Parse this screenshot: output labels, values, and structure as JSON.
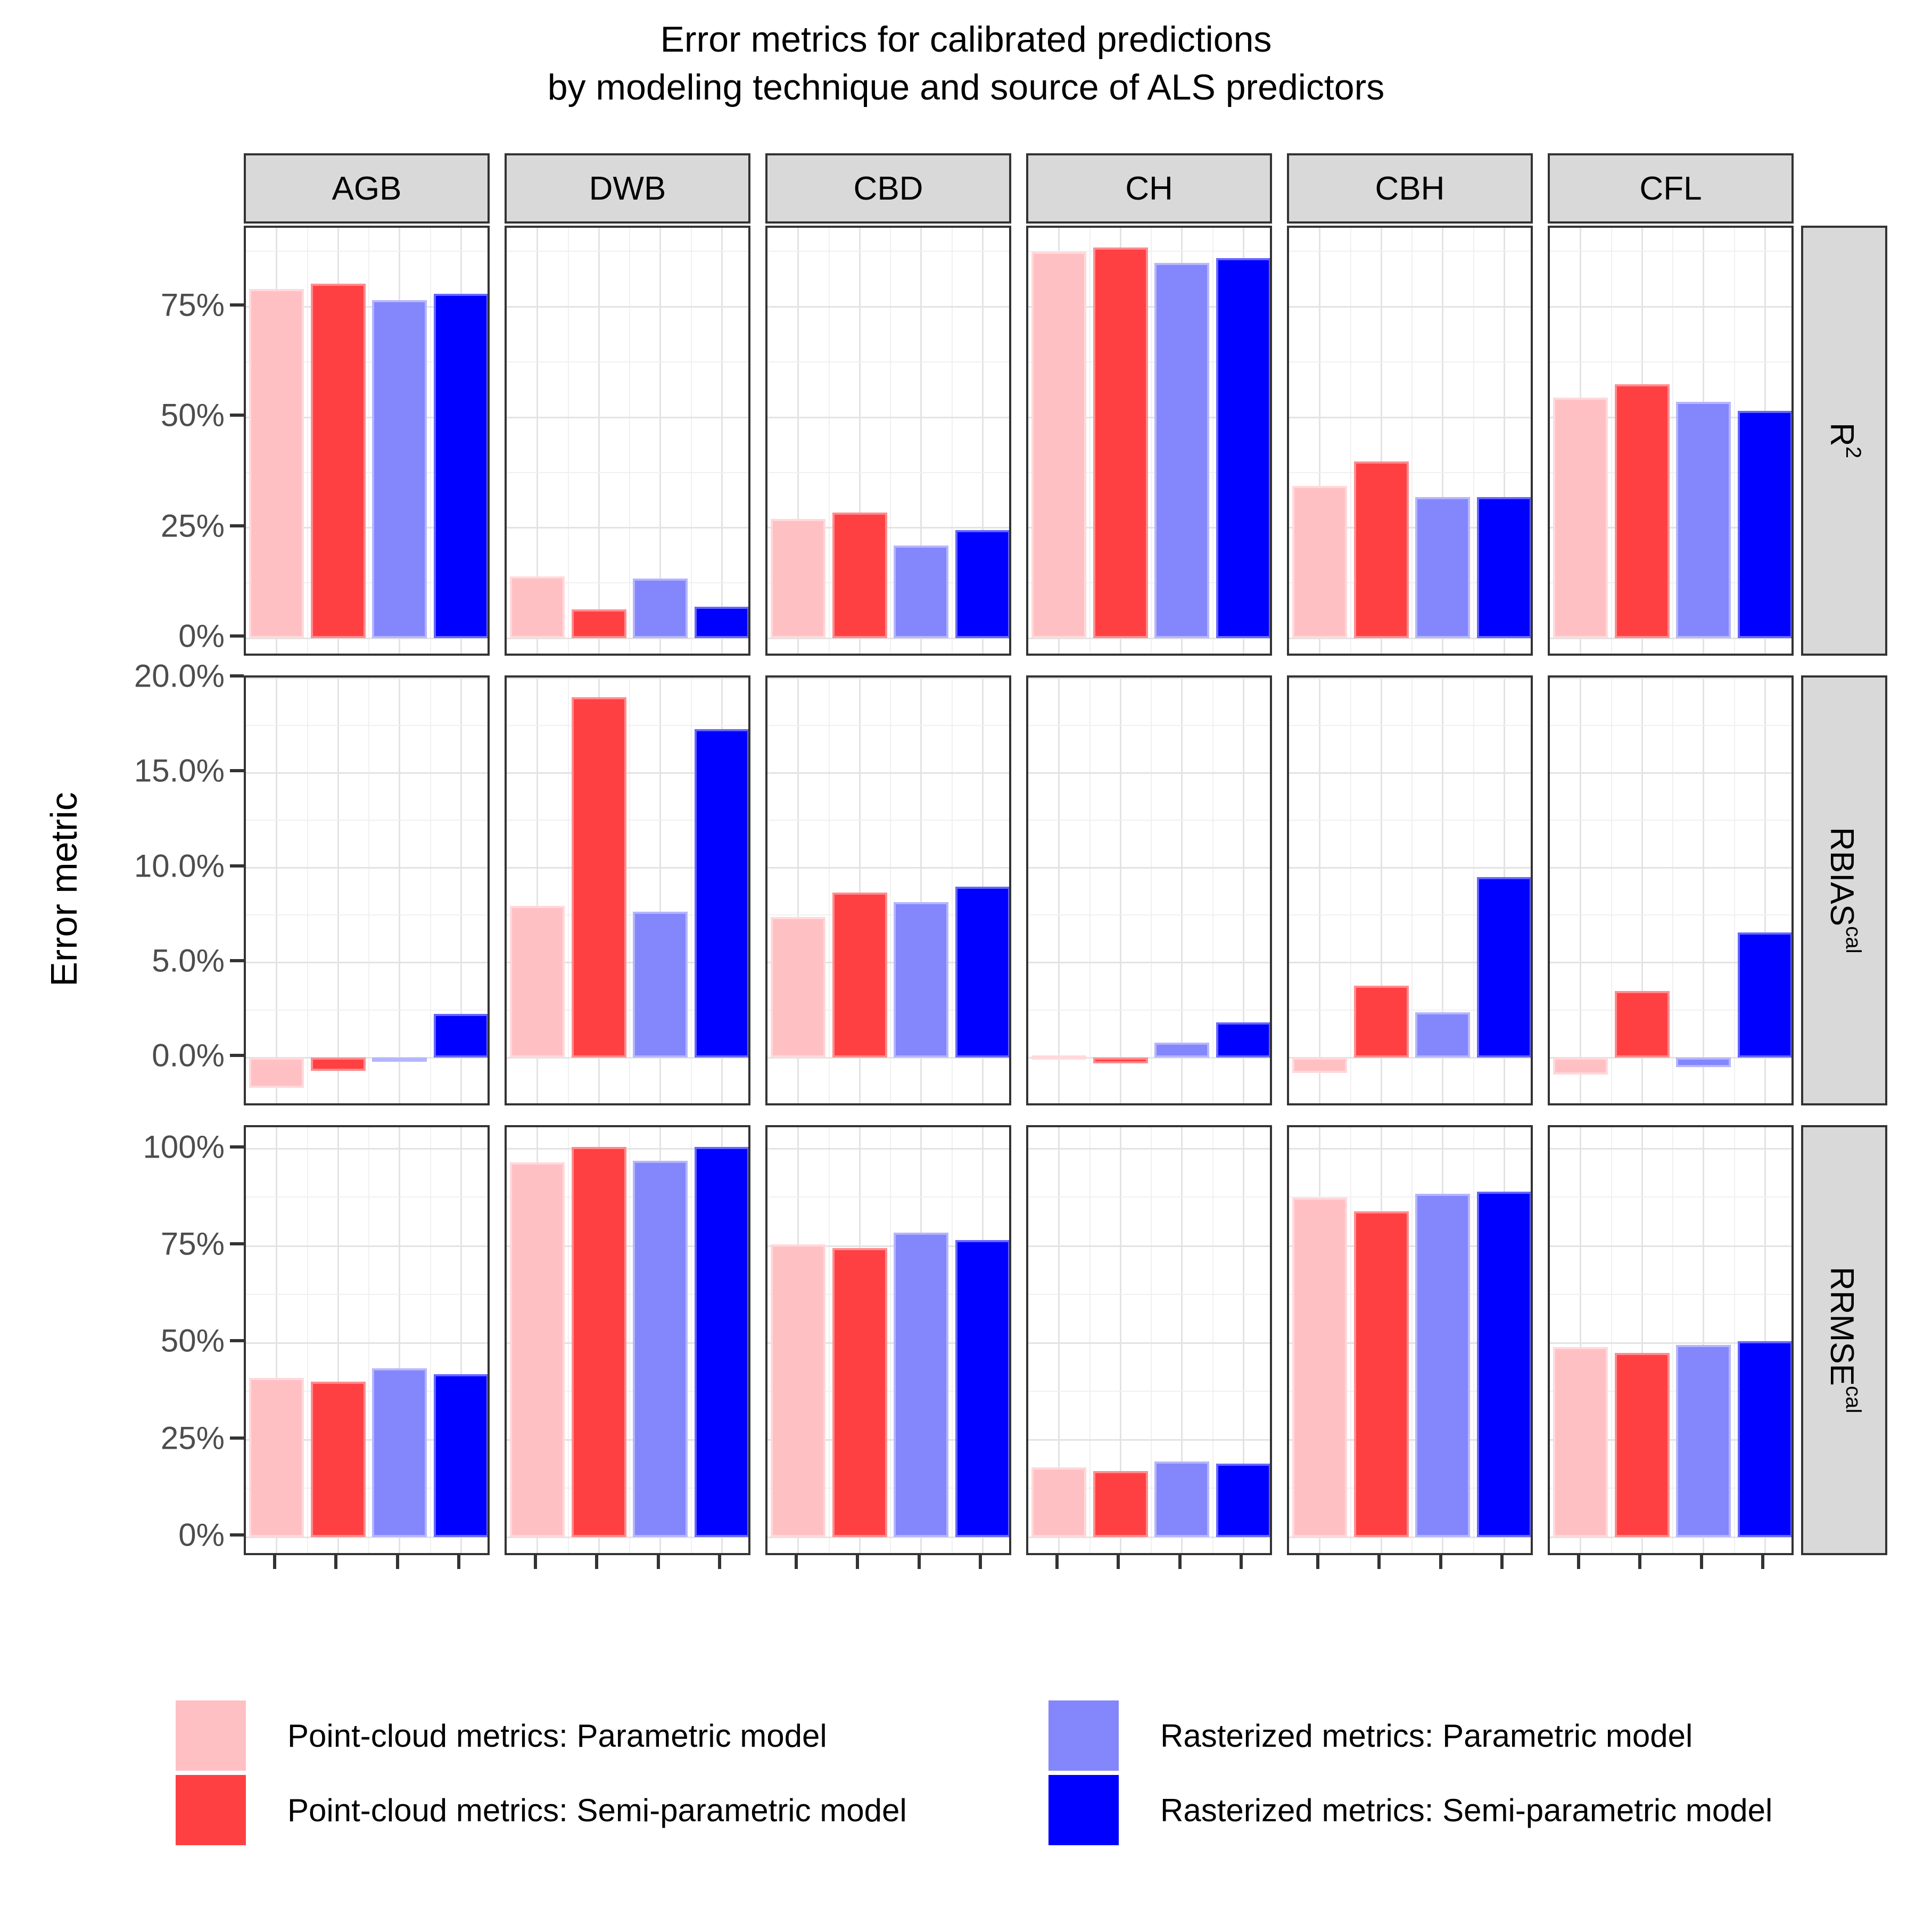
{
  "title": {
    "line1": "Error metrics for calibrated predictions",
    "line2": "by modeling technique and source of ALS predictors"
  },
  "y_axis_title": "Error metric",
  "series": [
    {
      "label": "Point-cloud metrics: Parametric model",
      "color": "#FFC0C4"
    },
    {
      "label": "Point-cloud metrics: Semi-parametric model",
      "color": "#FF4043"
    },
    {
      "label": "Rasterized metrics: Parametric model",
      "color": "#8486FC"
    },
    {
      "label": "Rasterized metrics: Semi-parametric model",
      "color": "#0000FE"
    }
  ],
  "chart_data": {
    "type": "bar",
    "facet_columns": [
      "AGB",
      "DWB",
      "CBD",
      "CH",
      "CBH",
      "CFL"
    ],
    "legend_position": "bottom",
    "grid": "on",
    "rows": [
      {
        "label_base": "R",
        "label_sup": "2",
        "tick_values": [
          0,
          25,
          50,
          75
        ],
        "tick_labels": [
          "0%",
          "25%",
          "50%",
          "75%"
        ],
        "major_step": 25,
        "minor_step": 12.5,
        "ylim": [
          -4.4,
          92.9
        ],
        "values": {
          "AGB": [
            79,
            80.2,
            76.5,
            78
          ],
          "DWB": [
            14,
            6.5,
            13.5,
            7.2
          ],
          "CBD": [
            27,
            28.5,
            21,
            24.5
          ],
          "CH": [
            87.5,
            88.5,
            85,
            86
          ],
          "CBH": [
            34.5,
            40,
            32,
            32
          ],
          "CFL": [
            54.5,
            57.5,
            53.5,
            51.5
          ]
        }
      },
      {
        "label_base": "RBIAS",
        "label_sup": "cal",
        "tick_values": [
          0,
          5,
          10,
          15,
          20
        ],
        "tick_labels": [
          "0.0%",
          "5.0%",
          "10.0%",
          "15.0%",
          "20.0%"
        ],
        "major_step": 5,
        "minor_step": 2.5,
        "ylim": [
          -2.63,
          20.03
        ],
        "values": {
          "AGB": [
            -1.6,
            -0.7,
            -0.15,
            2.3
          ],
          "DWB": [
            8,
            19,
            7.7,
            17.3
          ],
          "CBD": [
            7.4,
            8.7,
            8.2,
            9
          ],
          "CH": [
            0.12,
            -0.3,
            0.8,
            1.85
          ],
          "CBH": [
            -0.8,
            3.8,
            2.4,
            9.5
          ],
          "CFL": [
            -0.9,
            3.5,
            -0.5,
            6.6
          ]
        }
      },
      {
        "label_base": "RRMSE",
        "label_sup": "cal",
        "tick_values": [
          0,
          25,
          50,
          75,
          100
        ],
        "tick_labels": [
          "0%",
          "25%",
          "50%",
          "75%",
          "100%"
        ],
        "major_step": 25,
        "minor_step": 12.5,
        "ylim": [
          -5.2,
          105.6
        ],
        "values": {
          "AGB": [
            41,
            40,
            43.5,
            42
          ],
          "DWB": [
            96.5,
            100.5,
            97,
            100.5
          ],
          "CBD": [
            75.5,
            74.5,
            78.5,
            76.5
          ],
          "CH": [
            18,
            17,
            19.5,
            19
          ],
          "CBH": [
            87.5,
            84,
            88.5,
            89
          ],
          "CFL": [
            49,
            47.5,
            49.5,
            50.5
          ]
        }
      }
    ]
  }
}
